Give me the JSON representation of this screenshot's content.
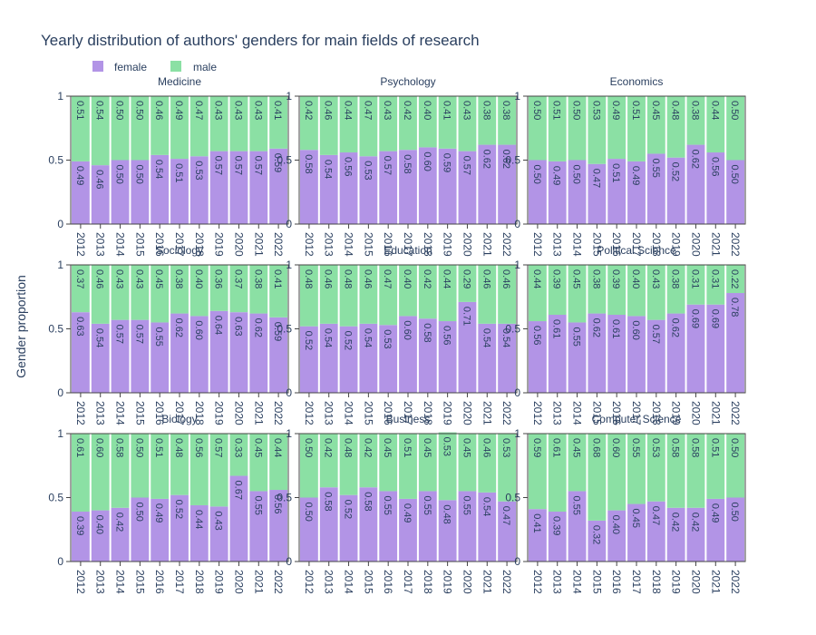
{
  "chart_data": {
    "type": "bar",
    "stacked": true,
    "title": "Yearly distribution of authors' genders for main fields of research",
    "ylabel": "Gender proportion",
    "xlabel": "",
    "ylim": [
      0,
      1
    ],
    "yticks": [
      "0",
      "0.5",
      "1"
    ],
    "legend": {
      "placement": "top-left",
      "entries": [
        {
          "name": "female",
          "color": "#b294e6"
        },
        {
          "name": "male",
          "color": "#8be0a4"
        }
      ]
    },
    "colors": {
      "female": "#b294e6",
      "male": "#8be0a4",
      "text": "#2a3f5f",
      "axis": "#444444"
    },
    "categories": [
      "2012",
      "2013",
      "2014",
      "2015",
      "2016",
      "2017",
      "2018",
      "2019",
      "2020",
      "2021",
      "2022"
    ],
    "grid": false,
    "panels": [
      {
        "title": "Medicine",
        "female": [
          0.49,
          0.46,
          0.5,
          0.5,
          0.54,
          0.51,
          0.53,
          0.57,
          0.57,
          0.57,
          0.59
        ],
        "male": [
          0.51,
          0.54,
          0.5,
          0.5,
          0.46,
          0.49,
          0.47,
          0.43,
          0.43,
          0.43,
          0.41
        ],
        "female_labels": [
          "0.49",
          "0.46",
          "0.50",
          "0.50",
          "0.54",
          "0.51",
          "0.53",
          "0.57",
          "0.57",
          "0.57",
          "0.59"
        ],
        "male_labels": [
          "0.51",
          "0.54",
          "0.50",
          "0.50",
          "0.46",
          "0.49",
          "0.47",
          "0.43",
          "0.43",
          "0.43",
          "0.41"
        ]
      },
      {
        "title": "Psychology",
        "female": [
          0.58,
          0.54,
          0.56,
          0.53,
          0.57,
          0.58,
          0.6,
          0.59,
          0.57,
          0.62,
          0.62
        ],
        "male": [
          0.42,
          0.46,
          0.44,
          0.47,
          0.43,
          0.42,
          0.4,
          0.41,
          0.43,
          0.38,
          0.38
        ],
        "female_labels": [
          "0.58",
          "0.54",
          "0.56",
          "0.53",
          "0.57",
          "0.58",
          "0.60",
          "0.59",
          "0.57",
          "0.62",
          "0.62"
        ],
        "male_labels": [
          "0.42",
          "0.46",
          "0.44",
          "0.47",
          "0.43",
          "0.42",
          "0.40",
          "0.41",
          "0.43",
          "0.38",
          "0.38"
        ]
      },
      {
        "title": "Economics",
        "female": [
          0.5,
          0.49,
          0.5,
          0.47,
          0.51,
          0.49,
          0.55,
          0.52,
          0.62,
          0.56,
          0.5
        ],
        "male": [
          0.5,
          0.51,
          0.5,
          0.53,
          0.49,
          0.51,
          0.45,
          0.48,
          0.38,
          0.44,
          0.5
        ],
        "female_labels": [
          "0.50",
          "0.49",
          "0.50",
          "0.47",
          "0.51",
          "0.49",
          "0.55",
          "0.52",
          "0.62",
          "0.56",
          "0.50"
        ],
        "male_labels": [
          "0.50",
          "0.51",
          "0.50",
          "0.53",
          "0.49",
          "0.51",
          "0.45",
          "0.48",
          "0.38",
          "0.44",
          "0.50"
        ]
      },
      {
        "title": "Sociology",
        "female": [
          0.63,
          0.54,
          0.57,
          0.57,
          0.55,
          0.62,
          0.6,
          0.64,
          0.63,
          0.62,
          0.59
        ],
        "male": [
          0.37,
          0.46,
          0.43,
          0.43,
          0.45,
          0.38,
          0.4,
          0.36,
          0.37,
          0.38,
          0.41
        ],
        "female_labels": [
          "0.63",
          "0.54",
          "0.57",
          "0.57",
          "0.55",
          "0.62",
          "0.60",
          "0.64",
          "0.63",
          "0.62",
          "0.59"
        ],
        "male_labels": [
          "0.37",
          "0.46",
          "0.43",
          "0.43",
          "0.45",
          "0.38",
          "0.40",
          "0.36",
          "0.37",
          "0.38",
          "0.41"
        ]
      },
      {
        "title": "Education",
        "female": [
          0.52,
          0.54,
          0.52,
          0.54,
          0.53,
          0.6,
          0.58,
          0.56,
          0.71,
          0.54,
          0.54
        ],
        "male": [
          0.48,
          0.46,
          0.48,
          0.46,
          0.47,
          0.4,
          0.42,
          0.44,
          0.29,
          0.46,
          0.46
        ],
        "female_labels": [
          "0.52",
          "0.54",
          "0.52",
          "0.54",
          "0.53",
          "0.60",
          "0.58",
          "0.56",
          "0.71",
          "0.54",
          "0.54"
        ],
        "male_labels": [
          "0.48",
          "0.46",
          "0.48",
          "0.46",
          "0.47",
          "0.40",
          "0.42",
          "0.44",
          "0.29",
          "0.46",
          "0.46"
        ]
      },
      {
        "title": "Political Science",
        "female": [
          0.56,
          0.61,
          0.55,
          0.62,
          0.61,
          0.6,
          0.57,
          0.62,
          0.69,
          0.69,
          0.78
        ],
        "male": [
          0.44,
          0.39,
          0.45,
          0.38,
          0.39,
          0.4,
          0.43,
          0.38,
          0.31,
          0.31,
          0.22
        ],
        "female_labels": [
          "0.56",
          "0.61",
          "0.55",
          "0.62",
          "0.61",
          "0.60",
          "0.57",
          "0.62",
          "0.69",
          "0.69",
          "0.78"
        ],
        "male_labels": [
          "0.44",
          "0.39",
          "0.45",
          "0.38",
          "0.39",
          "0.40",
          "0.43",
          "0.38",
          "0.31",
          "0.31",
          "0.22"
        ]
      },
      {
        "title": "Biology",
        "female": [
          0.39,
          0.4,
          0.42,
          0.5,
          0.49,
          0.52,
          0.44,
          0.43,
          0.67,
          0.55,
          0.56
        ],
        "male": [
          0.61,
          0.6,
          0.58,
          0.5,
          0.51,
          0.48,
          0.56,
          0.57,
          0.33,
          0.45,
          0.44
        ],
        "female_labels": [
          "0.39",
          "0.40",
          "0.42",
          "0.50",
          "0.49",
          "0.52",
          "0.44",
          "0.43",
          "0.67",
          "0.55",
          "0.56"
        ],
        "male_labels": [
          "0.61",
          "0.60",
          "0.58",
          "0.50",
          "0.51",
          "0.48",
          "0.56",
          "0.57",
          "0.33",
          "0.45",
          "0.44"
        ]
      },
      {
        "title": "Business",
        "female": [
          0.5,
          0.58,
          0.52,
          0.58,
          0.55,
          0.49,
          0.55,
          0.48,
          0.55,
          0.54,
          0.47
        ],
        "male": [
          0.5,
          0.42,
          0.48,
          0.42,
          0.45,
          0.51,
          0.45,
          0.53,
          0.45,
          0.46,
          0.53
        ],
        "female_labels": [
          "0.50",
          "0.58",
          "0.52",
          "0.58",
          "0.55",
          "0.49",
          "0.55",
          "0.48",
          "0.55",
          "0.54",
          "0.47"
        ],
        "male_labels": [
          "0.50",
          "0.42",
          "0.48",
          "0.42",
          "0.45",
          "0.51",
          "0.45",
          "0.53",
          "0.45",
          "0.46",
          "0.53"
        ]
      },
      {
        "title": "Computer Science",
        "female": [
          0.41,
          0.39,
          0.55,
          0.32,
          0.4,
          0.45,
          0.47,
          0.42,
          0.42,
          0.49,
          0.5
        ],
        "male": [
          0.59,
          0.61,
          0.45,
          0.68,
          0.6,
          0.55,
          0.53,
          0.58,
          0.58,
          0.51,
          0.5
        ],
        "female_labels": [
          "0.41",
          "0.39",
          "0.55",
          "0.32",
          "0.40",
          "0.45",
          "0.47",
          "0.42",
          "0.42",
          "0.49",
          "0.50"
        ],
        "male_labels": [
          "0.59",
          "0.61",
          "0.45",
          "0.68",
          "0.60",
          "0.55",
          "0.53",
          "0.58",
          "0.58",
          "0.51",
          "0.50"
        ]
      }
    ]
  }
}
